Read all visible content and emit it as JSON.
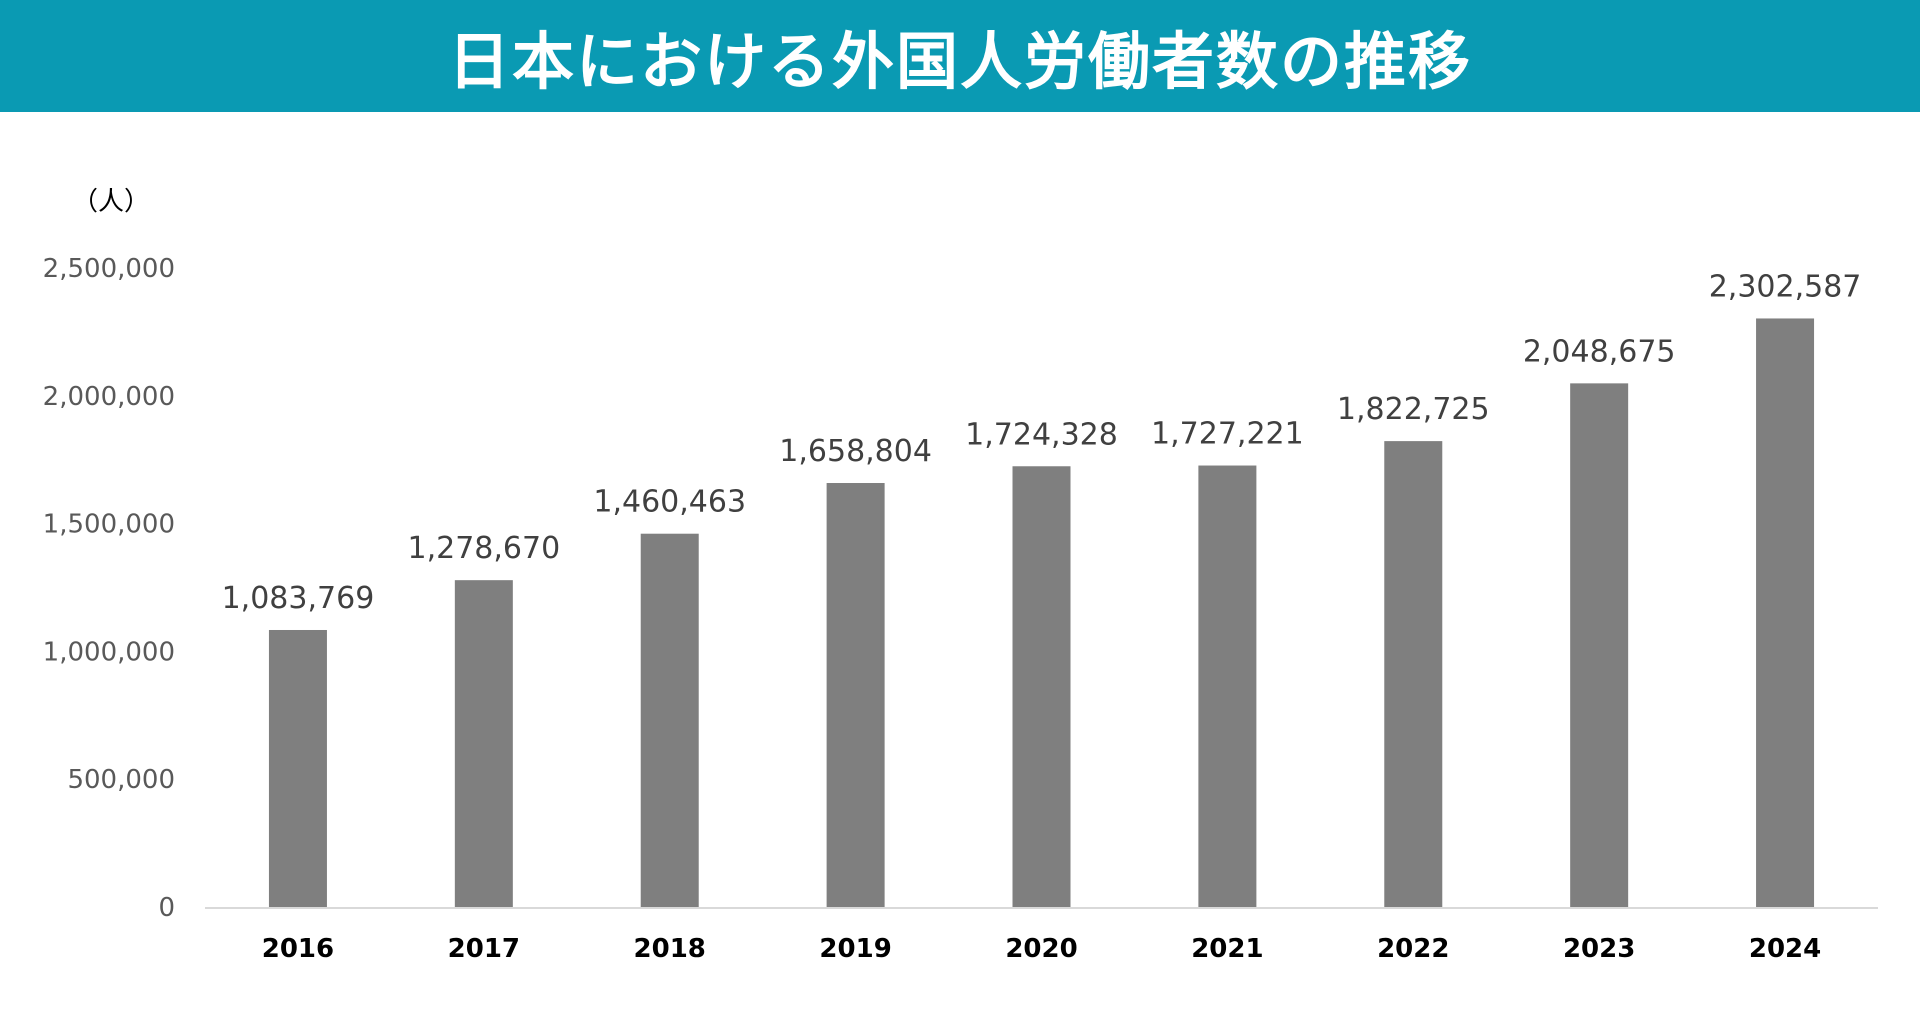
{
  "header": {
    "title": "日本における外国人労働者数の推移"
  },
  "colors": {
    "header_bg": "#0a9ab3",
    "bar": "#7f7f7f",
    "axis": "#d9d9d9"
  },
  "chart_data": {
    "type": "bar",
    "title": "日本における外国人労働者数の推移",
    "ylabel": "（人）",
    "xlabel": "",
    "categories": [
      "2016",
      "2017",
      "2018",
      "2019",
      "2020",
      "2021",
      "2022",
      "2023",
      "2024"
    ],
    "values": [
      1083769,
      1278670,
      1460463,
      1658804,
      1724328,
      1727221,
      1822725,
      2048675,
      2302587
    ],
    "data_labels": [
      "1,083,769",
      "1,278,670",
      "1,460,463",
      "1,658,804",
      "1,724,328",
      "1,727,221",
      "1,822,725",
      "2,048,675",
      "2,302,587"
    ],
    "ylim": [
      0,
      2500000
    ],
    "yticks": [
      0,
      500000,
      1000000,
      1500000,
      2000000,
      2500000
    ],
    "ytick_labels": [
      "0",
      "500,000",
      "1,000,000",
      "1,500,000",
      "2,000,000",
      "2,500,000"
    ],
    "grid": false,
    "legend": "none"
  }
}
